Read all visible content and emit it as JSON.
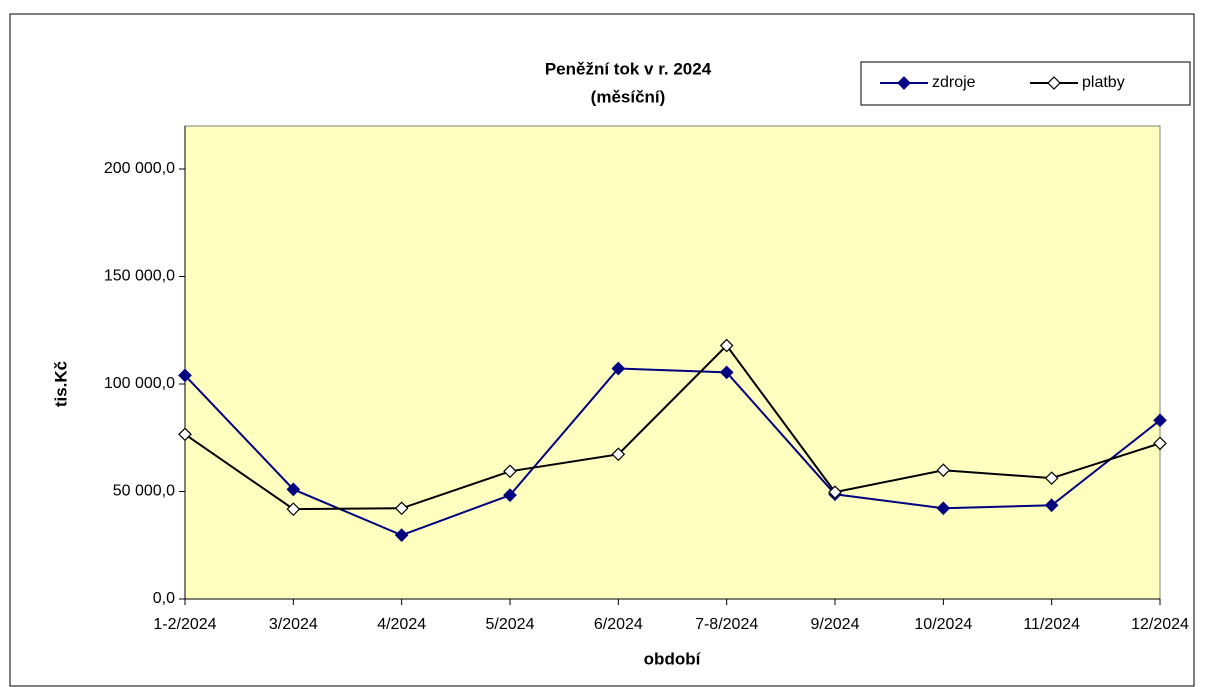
{
  "chart_data": {
    "type": "line",
    "title": "Peněžní tok v r. 2024",
    "subtitle": "(měsíční)",
    "x_label": "období",
    "y_label": "tis.Kč",
    "categories": [
      "1-2/2024",
      "3/2024",
      "4/2024",
      "5/2024",
      "6/2024",
      "7-8/2024",
      "9/2024",
      "10/2024",
      "11/2024",
      "12/2024"
    ],
    "series": [
      {
        "name": "zdroje",
        "color": "#000080",
        "marker_fill": "#000080",
        "values": [
          104000,
          51000,
          29700,
          48300,
          107200,
          105400,
          48700,
          42200,
          43600,
          83100
        ]
      },
      {
        "name": "platby",
        "color": "#000000",
        "marker_fill": "#ffffff",
        "values": [
          76600,
          41800,
          42200,
          59400,
          67300,
          117900,
          49700,
          59900,
          56200,
          72400
        ]
      }
    ],
    "ylim": [
      0,
      220000
    ],
    "yticks": [
      {
        "value": 0,
        "label": "0,0"
      },
      {
        "value": 50000,
        "label": "50 000,0"
      },
      {
        "value": 100000,
        "label": "100 000,0"
      },
      {
        "value": 150000,
        "label": "150 000,0"
      },
      {
        "value": 200000,
        "label": "200 000,0"
      }
    ],
    "plot_background": "#ffffc0",
    "legend": "top-right"
  }
}
